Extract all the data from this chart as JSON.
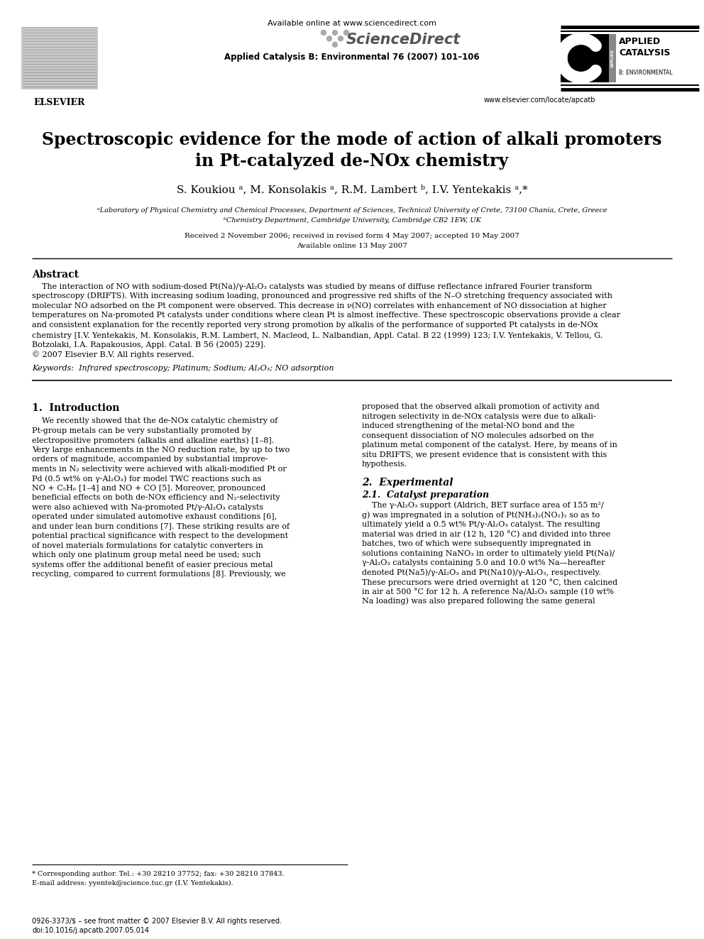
{
  "title_line1": "Spectroscopic evidence for the mode of action of alkali promoters",
  "title_line2": "in Pt-catalyzed de-NOx chemistry",
  "authors": "S. Koukiou ᵃ, M. Konsolakis ᵃ, R.M. Lambert ᵇ, I.V. Yentekakis ᵃ,*",
  "affil_a": "ᵃLaboratory of Physical Chemistry and Chemical Processes, Department of Sciences, Technical University of Crete, 73100 Chania, Crete, Greece",
  "affil_b": "ᵇChemistry Department, Cambridge University, Cambridge CB2 1EW, UK",
  "received": "Received 2 November 2006; received in revised form 4 May 2007; accepted 10 May 2007",
  "available": "Available online 13 May 2007",
  "journal_line": "Applied Catalysis B: Environmental 76 (2007) 101–106",
  "sciencedirect_avail": "Available online at www.sciencedirect.com",
  "sciencedirect_name": "ScienceDirect",
  "elsevier_label": "ELSEVIER",
  "journal_url": "www.elsevier.com/locate/apcatb",
  "applied1": "APPLIED",
  "applied2": "CATALYSIS",
  "applied3": "B: ENVIRONMENTAL",
  "abstract_title": "Abstract",
  "keywords": "Keywords:  Infrared spectroscopy; Platinum; Sodium; Al₂O₃; NO adsorption",
  "section1_title": "1.  Introduction",
  "footnote_star": "* Corresponding author. Tel.: +30 28210 37752; fax: +30 28210 37843.",
  "footnote_email": "E-mail address: yyentek@science.tuc.gr (I.V. Yentekakis).",
  "footer_issn": "0926-3373/$ – see front matter © 2007 Elsevier B.V. All rights reserved.",
  "footer_doi": "doi:10.1016/j.apcatb.2007.05.014",
  "bg_color": "#ffffff",
  "text_color": "#000000",
  "abs_lines": [
    "    The interaction of NO with sodium-dosed Pt(Na)/γ-Al₂O₃ catalysts was studied by means of diffuse reflectance infrared Fourier transform",
    "spectroscopy (DRIFTS). With increasing sodium loading, pronounced and progressive red shifts of the N–O stretching frequency associated with",
    "molecular NO adsorbed on the Pt component were observed. This decrease in ν(NO) correlates with enhancement of NO dissociation at higher",
    "temperatures on Na-promoted Pt catalysts under conditions where clean Pt is almost ineffective. These spectroscopic observations provide a clear",
    "and consistent explanation for the recently reported very strong promotion by alkalis of the performance of supported Pt catalysts in de-NOx",
    "chemistry [I.V. Yentekakis, M. Konsolakis, R.M. Lambert, N. Macleod, L. Nalbandian, Appl. Catal. B 22 (1999) 123; I.V. Yentekakis, V. Tellou, G.",
    "Botzolaki, I.A. Rapakousios, Appl. Catal. B 56 (2005) 229].",
    "© 2007 Elsevier B.V. All rights reserved."
  ],
  "intro_left": [
    "    We recently showed that the de-NOx catalytic chemistry of",
    "Pt-group metals can be very substantially promoted by",
    "electropositive promoters (alkalis and alkaline earths) [1–8].",
    "Very large enhancements in the NO reduction rate, by up to two",
    "orders of magnitude, accompanied by substantial improve-",
    "ments in N₂ selectivity were achieved with alkali-modified Pt or",
    "Pd (0.5 wt% on γ-Al₂O₃) for model TWC reactions such as",
    "NO + C₅H₆ [1–4] and NO + CO [5]. Moreover, pronounced",
    "beneficial effects on both de-NOx efficiency and N₂-selectivity",
    "were also achieved with Na-promoted Pt/γ-Al₂O₃ catalysts",
    "operated under simulated automotive exhaust conditions [6],",
    "and under lean burn conditions [7]. These striking results are of",
    "potential practical significance with respect to the development",
    "of novel materials formulations for catalytic converters in",
    "which only one platinum group metal need be used; such",
    "systems offer the additional benefit of easier precious metal",
    "recycling, compared to current formulations [8]. Previously, we"
  ],
  "intro_right": [
    "proposed that the observed alkali promotion of activity and",
    "nitrogen selectivity in de-NOx catalysis were due to alkali-",
    "induced strengthening of the metal-NO bond and the",
    "consequent dissociation of NO molecules adsorbed on the",
    "platinum metal component of the catalyst. Here, by means of in",
    "situ DRIFTS, we present evidence that is consistent with this",
    "hypothesis."
  ],
  "sec2_title": "2.  Experimental",
  "sec21_title": "2.1.  Catalyst preparation",
  "sec21_lines": [
    "    The γ-Al₂O₃ support (Aldrich, BET surface area of 155 m²/",
    "g) was impregnated in a solution of Pt(NH₃)₂(NO₂)₂ so as to",
    "ultimately yield a 0.5 wt% Pt/γ-Al₂O₃ catalyst. The resulting",
    "material was dried in air (12 h, 120 °C) and divided into three",
    "batches, two of which were subsequently impregnated in",
    "solutions containing NaNO₃ in order to ultimately yield Pt(Na)/",
    "γ-Al₂O₃ catalysts containing 5.0 and 10.0 wt% Na—hereafter",
    "denoted Pt(Na5)/γ-Al₂O₃ and Pt(Na10)/γ-Al₂O₃, respectively.",
    "These precursors were dried overnight at 120 °C, then calcined",
    "in air at 500 °C for 12 h. A reference Na/Al₂O₃ sample (10 wt%",
    "Na loading) was also prepared following the same general"
  ]
}
